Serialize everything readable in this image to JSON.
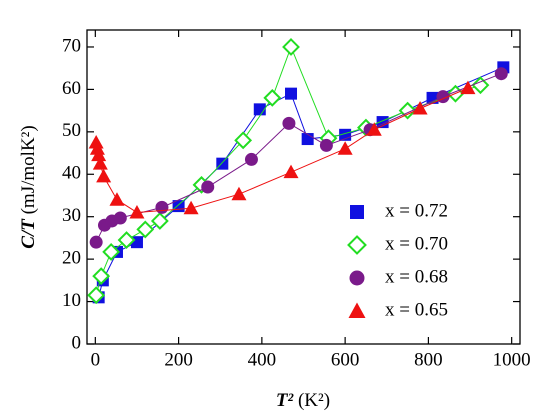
{
  "chart_data": {
    "type": "scatter",
    "xlabel_var": "T²",
    "xlabel_unit": "(K²)",
    "ylabel_var": "C/T",
    "ylabel_unit": "(mJ/molK²)",
    "xlim": [
      -20,
      1020
    ],
    "ylim": [
      0,
      74
    ],
    "xticks": [
      0,
      200,
      400,
      600,
      800,
      1000
    ],
    "yticks": [
      0,
      10,
      20,
      30,
      40,
      50,
      60,
      70
    ],
    "series": [
      {
        "name": "x = 0.72",
        "color": "#1010e0",
        "marker": "square",
        "x": [
          8,
          18,
          52,
          100,
          200,
          305,
          395,
          470,
          510,
          600,
          690,
          810,
          980
        ],
        "values": [
          11,
          15,
          21.7,
          24,
          32.5,
          42.5,
          55.3,
          59,
          48.3,
          49.3,
          52.3,
          58,
          65.2
        ]
      },
      {
        "name": "x = 0.70",
        "color": "#22dd22",
        "marker": "diamond",
        "x": [
          2,
          14,
          38,
          75,
          120,
          155,
          255,
          355,
          425,
          470,
          560,
          650,
          750,
          865,
          925
        ],
        "values": [
          11.5,
          16,
          21.7,
          24.5,
          27,
          29,
          37.5,
          48,
          58,
          70,
          48.5,
          51,
          55,
          59,
          61
        ]
      },
      {
        "name": "x = 0.68",
        "color": "#7a1a8a",
        "marker": "circle",
        "x": [
          2,
          22,
          40,
          60,
          160,
          270,
          375,
          465,
          555,
          660,
          835,
          975
        ],
        "values": [
          24,
          28,
          29,
          29.7,
          32.2,
          37,
          43.5,
          52,
          46.8,
          50.5,
          58.3,
          63.7
        ]
      },
      {
        "name": "x = 0.65",
        "color": "#ee1111",
        "marker": "triangle",
        "x": [
          2,
          5,
          8,
          12,
          20,
          52,
          100,
          230,
          345,
          470,
          600,
          670,
          780,
          895
        ],
        "values": [
          47.5,
          46,
          44.5,
          42.5,
          39.5,
          34,
          31,
          32,
          35.3,
          40.5,
          46,
          50.5,
          55.5,
          60.3
        ]
      }
    ]
  }
}
